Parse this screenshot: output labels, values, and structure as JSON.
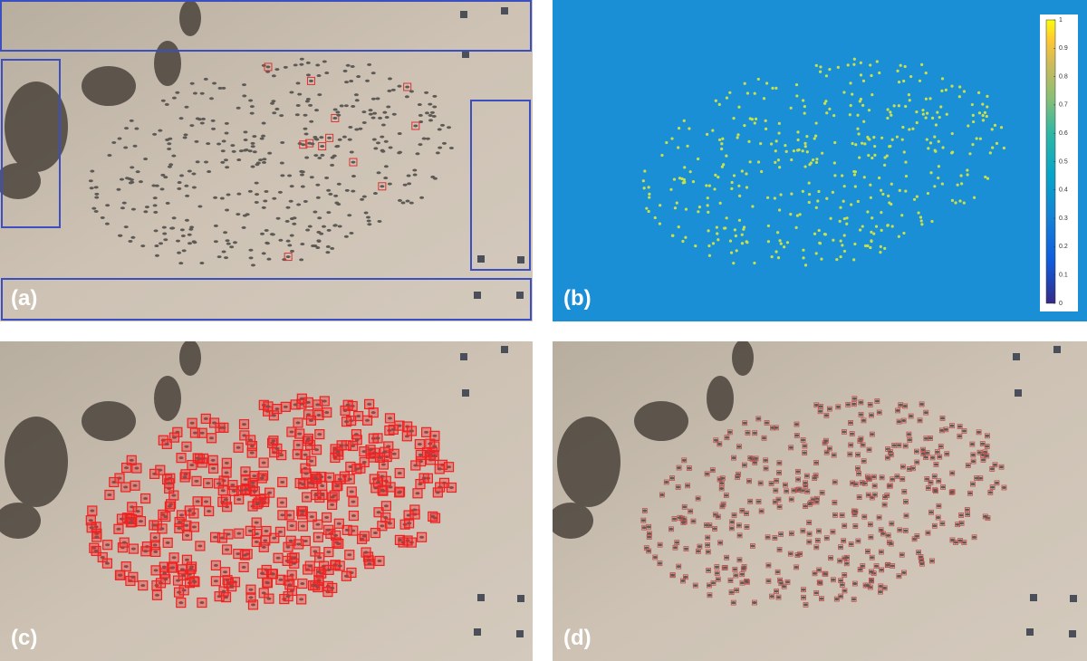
{
  "panels": [
    {
      "label": "(a)"
    },
    {
      "label": "(b)"
    },
    {
      "label": "(c)"
    },
    {
      "label": "(d)"
    }
  ],
  "colorbar": {
    "ticks": [
      0,
      0.1,
      0.2,
      0.3,
      0.4,
      0.5,
      0.6,
      0.7,
      0.8,
      0.9,
      1
    ]
  }
}
